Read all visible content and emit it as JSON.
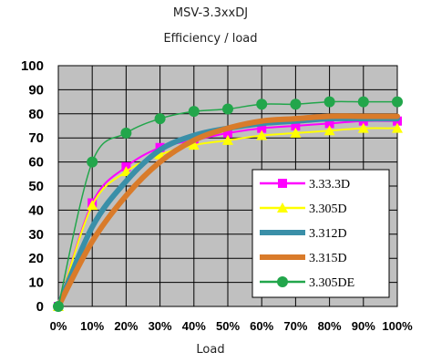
{
  "chart_data": {
    "type": "line",
    "title": "MSV-3.3xxDJ",
    "subtitle": "Efficiency / load",
    "xlabel": "Load",
    "ylabel": "",
    "categories": [
      "0%",
      "10%",
      "20%",
      "30%",
      "40%",
      "50%",
      "60%",
      "70%",
      "80%",
      "90%",
      "100%"
    ],
    "x": [
      0,
      10,
      20,
      30,
      40,
      50,
      60,
      70,
      80,
      90,
      100
    ],
    "ylim": [
      0,
      100
    ],
    "yticks": [
      0,
      10,
      20,
      30,
      40,
      50,
      60,
      70,
      80,
      90,
      100
    ],
    "grid": true,
    "legend": "bottom-right",
    "series": [
      {
        "name": "3.33.3D",
        "color": "#ff00ff",
        "marker": "square",
        "values": [
          0,
          43,
          58,
          66,
          69,
          72,
          74,
          75,
          76,
          77,
          77
        ]
      },
      {
        "name": "3.305D",
        "color": "#ffff00",
        "marker": "triangle",
        "values": [
          0,
          42,
          56,
          63,
          67,
          69,
          71,
          72,
          73,
          74,
          74
        ]
      },
      {
        "name": "3.312D",
        "color": "#3a8fa8",
        "marker": "none",
        "values": [
          0,
          33,
          52,
          65,
          71,
          74,
          76,
          77,
          78,
          78,
          78
        ]
      },
      {
        "name": "3.315D",
        "color": "#d97b2a",
        "marker": "none",
        "values": [
          0,
          27,
          46,
          60,
          69,
          74,
          77,
          78,
          79,
          79,
          79
        ]
      },
      {
        "name": "3.305DE",
        "color": "#22a64b",
        "marker": "circle",
        "values": [
          0,
          60,
          72,
          78,
          81,
          82,
          84,
          84,
          85,
          85,
          85
        ]
      }
    ]
  }
}
